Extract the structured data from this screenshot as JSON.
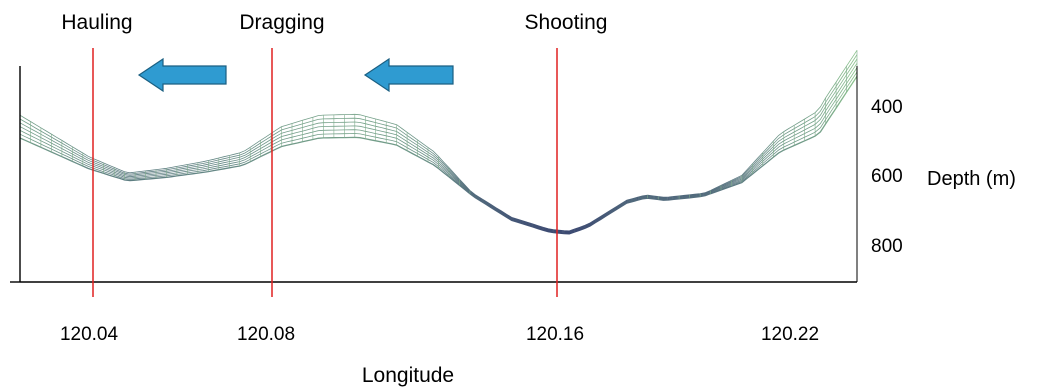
{
  "chart_data": {
    "type": "line",
    "title": "",
    "xlabel": "Longitude",
    "ylabel": "Depth (m)",
    "x_ticks": [
      "120.04",
      "120.08",
      "120.16",
      "120.22"
    ],
    "y_ticks": [
      "400",
      "600",
      "800"
    ],
    "xlim": [
      120.022,
      120.24
    ],
    "ylim_depth": [
      270,
      900
    ],
    "y_inverted": true,
    "grid": false,
    "series": [
      {
        "name": "",
        "color": "#4a5a78",
        "x": [
          120.022,
          120.03,
          120.04,
          120.05,
          120.06,
          120.07,
          120.08,
          120.09,
          120.1,
          120.11,
          120.12,
          120.13,
          120.14,
          120.15,
          120.16,
          120.165,
          120.17,
          120.18,
          120.185,
          120.19,
          120.2,
          120.21,
          120.22,
          120.23,
          120.24
        ],
        "y": [
          480,
          520,
          570,
          605,
          595,
          580,
          560,
          505,
          480,
          478,
          500,
          560,
          650,
          720,
          755,
          760,
          740,
          670,
          655,
          662,
          650,
          610,
          520,
          470,
          300
        ]
      }
    ],
    "vlines": [
      {
        "x": 120.044,
        "label": "Hauling",
        "color": "#e02020"
      },
      {
        "x": 120.084,
        "label": "Dragging",
        "color": "#e02020"
      },
      {
        "x": 120.161,
        "label": "Shooting",
        "color": "#e02020"
      }
    ],
    "arrows": [
      {
        "direction": "left",
        "color": "#2f9bd1"
      },
      {
        "direction": "left",
        "color": "#2f9bd1"
      }
    ]
  }
}
